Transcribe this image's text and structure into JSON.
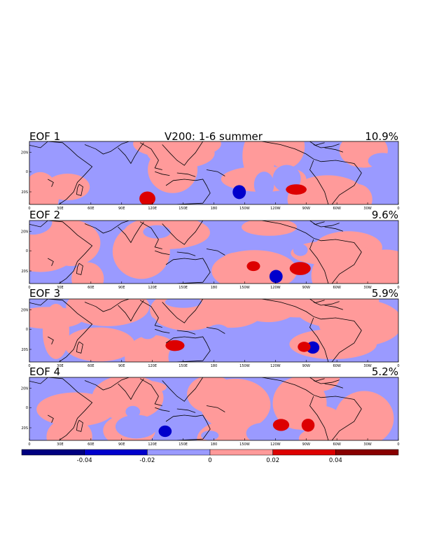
{
  "figure_title": "V200: 1-6 summer",
  "panels": [
    {
      "label": "EOF 1",
      "variance": "10.9%"
    },
    {
      "label": "EOF 2",
      "variance": "9.6%"
    },
    {
      "label": "EOF 3",
      "variance": "5.9%"
    },
    {
      "label": "EOF 4",
      "variance": "5.2%"
    }
  ],
  "lon_ticks": [
    "0",
    "30E",
    "60E",
    "90E",
    "120E",
    "150E",
    "180",
    "150W",
    "120W",
    "90W",
    "60W",
    "30W",
    "0"
  ],
  "lat_ticks": [
    "20N",
    "0",
    "20S"
  ],
  "colorbar": {
    "labels": [
      "-0.04",
      "-0.02",
      "0",
      "0.02",
      "0.04"
    ],
    "colors": [
      "#000080",
      "#0000cc",
      "#9a9aff",
      "#ff9a9a",
      "#dd0000",
      "#880000"
    ]
  },
  "colors": {
    "positive": "#ff9a9a",
    "negative": "#9a9aff",
    "strong_positive": "#dd0000",
    "strong_negative": "#0000cc",
    "coastline": "#000000"
  }
}
